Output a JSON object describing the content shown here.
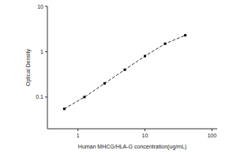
{
  "chart_data": {
    "type": "line",
    "x_label": "Human MHCG/HLA-G concentration(ug/mL)",
    "y_label": "Optical Density",
    "x": [
      0.625,
      1.25,
      2.5,
      5,
      10,
      20,
      40
    ],
    "values": [
      0.055,
      0.1,
      0.2,
      0.4,
      0.8,
      1.5,
      2.3
    ],
    "color": "#000000",
    "marker": "square",
    "line_style": "dashed",
    "log": true,
    "xlim": [
      0.35,
      120
    ],
    "xticks": [
      1,
      10,
      100
    ],
    "ylim": [
      0.02,
      10
    ],
    "yticks": [
      0.1,
      1,
      10
    ],
    "grid": false
  }
}
